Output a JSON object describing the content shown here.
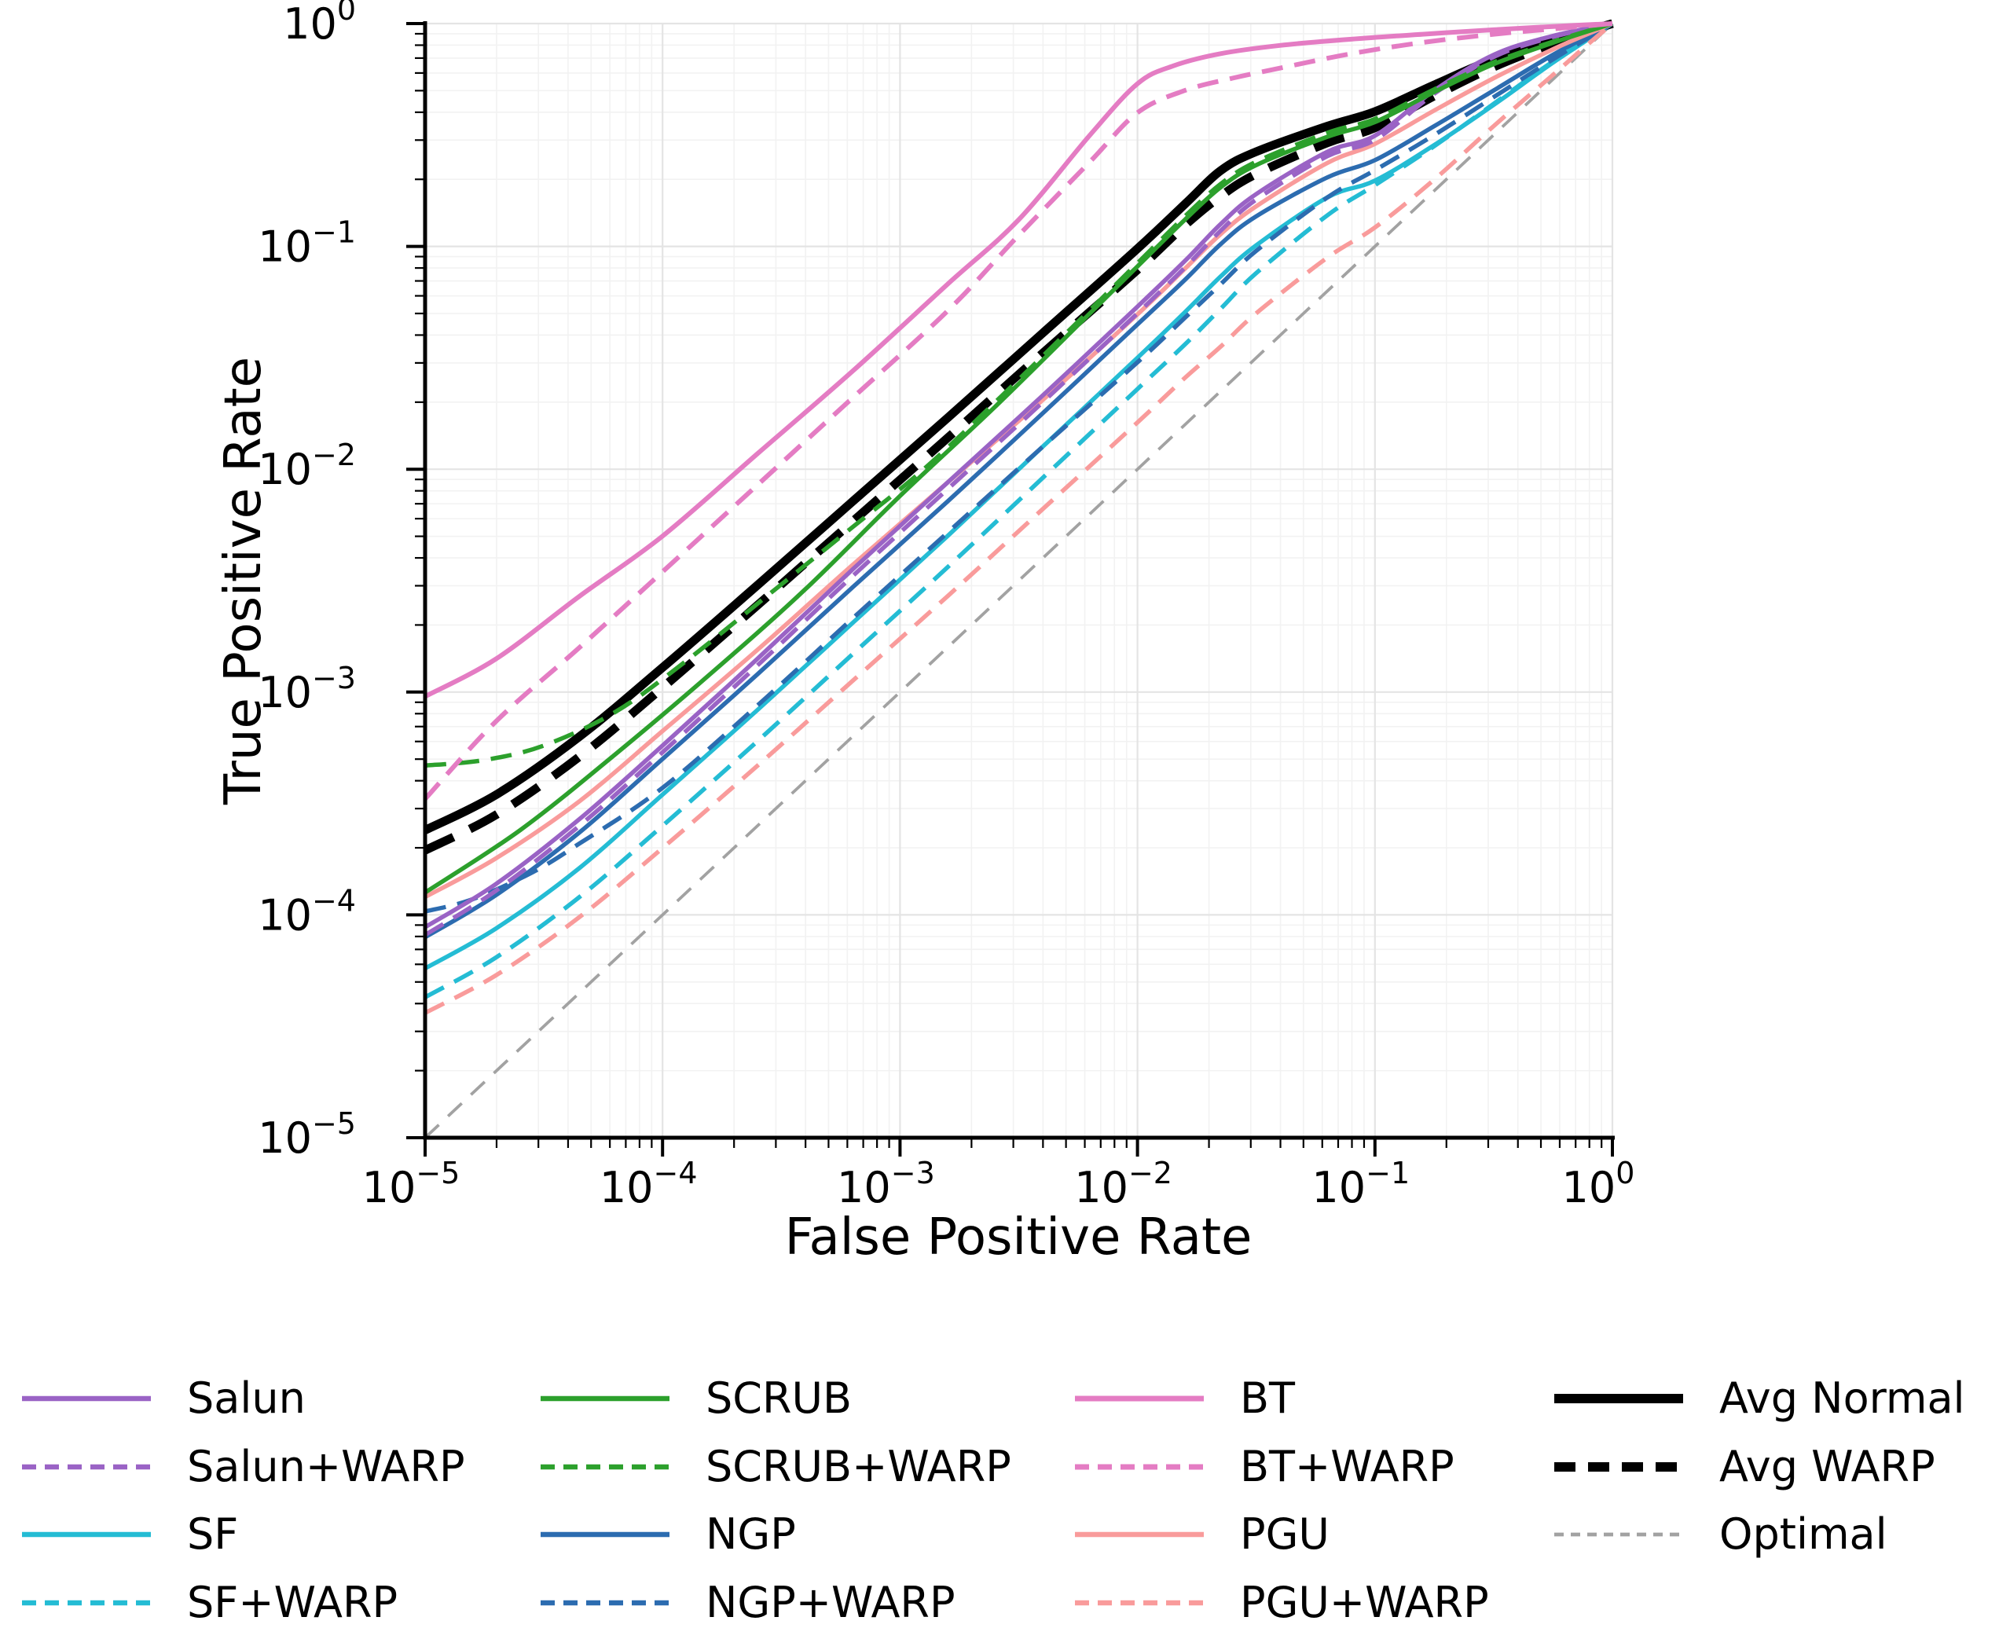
{
  "figure": {
    "background": "#ffffff"
  },
  "chart_data": {
    "type": "line",
    "title": "",
    "xlabel": "False Positive Rate",
    "ylabel": "True Positive Rate",
    "xscale": "log",
    "yscale": "log",
    "xlim": [
      1e-05,
      1
    ],
    "ylim": [
      1e-05,
      1
    ],
    "x_tick_exponents": [
      -5,
      -4,
      -3,
      -2,
      -1,
      0
    ],
    "y_tick_exponents": [
      0,
      -1,
      -2,
      -3,
      -4,
      -5
    ],
    "grid": "major-and-minor",
    "grid_major_color": "#e4e4e4",
    "grid_minor_color": "#f2f2f2",
    "axis_color": "#000000",
    "legend_position": "below",
    "legend_columns": [
      [
        "Salun",
        "Salun+WARP",
        "SF",
        "SF+WARP"
      ],
      [
        "SCRUB",
        "SCRUB+WARP",
        "NGP",
        "NGP+WARP"
      ],
      [
        "BT",
        "BT+WARP",
        "PGU",
        "PGU+WARP"
      ],
      [
        "Avg Normal",
        "Avg WARP",
        "Optimal"
      ]
    ],
    "series": [
      {
        "name": "Optimal",
        "color": "#a2a2a2",
        "line_style": "dashed-fine",
        "width": 3.8,
        "points": [
          [
            -5,
            -5
          ],
          [
            0,
            0
          ]
        ]
      },
      {
        "name": "Avg Normal",
        "color": "#000000",
        "line_style": "solid",
        "width": 11,
        "points": [
          [
            -5,
            -3.62
          ],
          [
            -4.7,
            -3.46
          ],
          [
            -4.35,
            -3.2
          ],
          [
            -4,
            -2.89
          ],
          [
            -3.6,
            -2.52
          ],
          [
            -3.2,
            -2.145
          ],
          [
            -2.8,
            -1.77
          ],
          [
            -2.4,
            -1.39
          ],
          [
            -2,
            -1.01
          ],
          [
            -1.8,
            -0.81
          ],
          [
            -1.65,
            -0.66
          ],
          [
            -1.5,
            -0.575
          ],
          [
            -1.2,
            -0.46
          ],
          [
            -1,
            -0.395
          ],
          [
            -0.75,
            -0.275
          ],
          [
            -0.5,
            -0.16
          ],
          [
            -0.25,
            -0.075
          ],
          [
            0,
            0
          ]
        ]
      },
      {
        "name": "Avg WARP",
        "color": "#000000",
        "line_style": "dashed-bold",
        "width": 11,
        "points": [
          [
            -5,
            -3.71
          ],
          [
            -4.7,
            -3.55
          ],
          [
            -4.35,
            -3.29
          ],
          [
            -4,
            -2.98
          ],
          [
            -3.6,
            -2.61
          ],
          [
            -3.2,
            -2.235
          ],
          [
            -2.8,
            -1.86
          ],
          [
            -2.4,
            -1.48
          ],
          [
            -2,
            -1.105
          ],
          [
            -1.8,
            -0.905
          ],
          [
            -1.65,
            -0.775
          ],
          [
            -1.5,
            -0.675
          ],
          [
            -1.2,
            -0.535
          ],
          [
            -1,
            -0.468
          ],
          [
            -0.75,
            -0.325
          ],
          [
            -0.5,
            -0.195
          ],
          [
            -0.25,
            -0.09
          ],
          [
            0,
            0
          ]
        ]
      },
      {
        "name": "SF",
        "color": "#24bcd4",
        "line_style": "solid",
        "width": 5.5,
        "points": [
          [
            -5,
            -4.24
          ],
          [
            -4.7,
            -4.06
          ],
          [
            -4.35,
            -3.79
          ],
          [
            -4,
            -3.46
          ],
          [
            -3.6,
            -3.08
          ],
          [
            -3.2,
            -2.69
          ],
          [
            -2.8,
            -2.3
          ],
          [
            -2.4,
            -1.9
          ],
          [
            -2,
            -1.5
          ],
          [
            -1.8,
            -1.295
          ],
          [
            -1.65,
            -1.135
          ],
          [
            -1.5,
            -0.995
          ],
          [
            -1.2,
            -0.78
          ],
          [
            -1,
            -0.705
          ],
          [
            -0.75,
            -0.545
          ],
          [
            -0.5,
            -0.365
          ],
          [
            -0.25,
            -0.175
          ],
          [
            0,
            0
          ]
        ]
      },
      {
        "name": "SF+WARP",
        "color": "#24bcd4",
        "line_style": "dashed",
        "width": 5.5,
        "points": [
          [
            -5,
            -4.37
          ],
          [
            -4.7,
            -4.19
          ],
          [
            -4.35,
            -3.92
          ],
          [
            -4,
            -3.6
          ],
          [
            -3.6,
            -3.22
          ],
          [
            -3.2,
            -2.83
          ],
          [
            -2.8,
            -2.44
          ],
          [
            -2.4,
            -2.04
          ],
          [
            -2,
            -1.64
          ],
          [
            -1.8,
            -1.44
          ],
          [
            -1.65,
            -1.28
          ],
          [
            -1.5,
            -1.12
          ],
          [
            -1.2,
            -0.86
          ],
          [
            -1,
            -0.725
          ],
          [
            -0.75,
            -0.55
          ],
          [
            -0.5,
            -0.36
          ],
          [
            -0.25,
            -0.17
          ],
          [
            0,
            0
          ]
        ]
      },
      {
        "name": "NGP",
        "color": "#2c6cb0",
        "line_style": "solid",
        "width": 5.5,
        "points": [
          [
            -5,
            -4.1
          ],
          [
            -4.7,
            -3.91
          ],
          [
            -4.35,
            -3.63
          ],
          [
            -4,
            -3.3
          ],
          [
            -3.6,
            -2.92
          ],
          [
            -3.2,
            -2.53
          ],
          [
            -2.8,
            -2.145
          ],
          [
            -2.4,
            -1.75
          ],
          [
            -2,
            -1.35
          ],
          [
            -1.8,
            -1.15
          ],
          [
            -1.65,
            -0.99
          ],
          [
            -1.5,
            -0.865
          ],
          [
            -1.2,
            -0.69
          ],
          [
            -1,
            -0.613
          ],
          [
            -0.75,
            -0.46
          ],
          [
            -0.5,
            -0.3
          ],
          [
            -0.25,
            -0.14
          ],
          [
            0,
            0
          ]
        ]
      },
      {
        "name": "NGP+WARP",
        "color": "#2c6cb0",
        "line_style": "dashed",
        "width": 5.5,
        "points": [
          [
            -5,
            -3.985
          ],
          [
            -4.8,
            -3.93
          ],
          [
            -4.55,
            -3.81
          ],
          [
            -4.35,
            -3.68
          ],
          [
            -4,
            -3.43
          ],
          [
            -3.6,
            -3.06
          ],
          [
            -3.2,
            -2.67
          ],
          [
            -2.8,
            -2.285
          ],
          [
            -2.4,
            -1.9
          ],
          [
            -2,
            -1.52
          ],
          [
            -1.8,
            -1.32
          ],
          [
            -1.65,
            -1.17
          ],
          [
            -1.5,
            -1.02
          ],
          [
            -1.2,
            -0.78
          ],
          [
            -1,
            -0.658
          ],
          [
            -0.75,
            -0.5
          ],
          [
            -0.5,
            -0.33
          ],
          [
            -0.25,
            -0.16
          ],
          [
            0,
            0
          ]
        ]
      },
      {
        "name": "PGU",
        "color": "#f99b9b",
        "line_style": "solid",
        "width": 5.5,
        "points": [
          [
            -5,
            -3.92
          ],
          [
            -4.7,
            -3.745
          ],
          [
            -4.35,
            -3.49
          ],
          [
            -4,
            -3.175
          ],
          [
            -3.6,
            -2.81
          ],
          [
            -3.2,
            -2.43
          ],
          [
            -2.8,
            -2.06
          ],
          [
            -2.4,
            -1.69
          ],
          [
            -2,
            -1.305
          ],
          [
            -1.8,
            -1.1
          ],
          [
            -1.65,
            -0.945
          ],
          [
            -1.5,
            -0.82
          ],
          [
            -1.2,
            -0.625
          ],
          [
            -1,
            -0.54
          ],
          [
            -0.75,
            -0.39
          ],
          [
            -0.5,
            -0.245
          ],
          [
            -0.25,
            -0.115
          ],
          [
            0,
            0
          ]
        ]
      },
      {
        "name": "PGU+WARP",
        "color": "#f99b9b",
        "line_style": "dashed",
        "width": 5.5,
        "points": [
          [
            -5,
            -4.44
          ],
          [
            -4.7,
            -4.27
          ],
          [
            -4.35,
            -4.01
          ],
          [
            -4,
            -3.7
          ],
          [
            -3.6,
            -3.33
          ],
          [
            -3.2,
            -2.95
          ],
          [
            -2.8,
            -2.57
          ],
          [
            -2.4,
            -2.18
          ],
          [
            -2,
            -1.79
          ],
          [
            -1.8,
            -1.59
          ],
          [
            -1.65,
            -1.45
          ],
          [
            -1.5,
            -1.3
          ],
          [
            -1.2,
            -1.05
          ],
          [
            -1,
            -0.915
          ],
          [
            -0.75,
            -0.7
          ],
          [
            -0.5,
            -0.46
          ],
          [
            -0.25,
            -0.23
          ],
          [
            -0.1,
            -0.09
          ],
          [
            0,
            0
          ]
        ]
      },
      {
        "name": "Salun",
        "color": "#9a63c5",
        "line_style": "solid",
        "width": 5.5,
        "points": [
          [
            -5,
            -4.055
          ],
          [
            -4.7,
            -3.86
          ],
          [
            -4.35,
            -3.57
          ],
          [
            -4,
            -3.24
          ],
          [
            -3.6,
            -2.85
          ],
          [
            -3.2,
            -2.45
          ],
          [
            -2.8,
            -2.06
          ],
          [
            -2.4,
            -1.67
          ],
          [
            -2,
            -1.27
          ],
          [
            -1.8,
            -1.065
          ],
          [
            -1.65,
            -0.9
          ],
          [
            -1.5,
            -0.765
          ],
          [
            -1.2,
            -0.575
          ],
          [
            -1,
            -0.503
          ],
          [
            -0.75,
            -0.3
          ],
          [
            -0.5,
            -0.14
          ],
          [
            -0.25,
            -0.055
          ],
          [
            0,
            0
          ]
        ]
      },
      {
        "name": "Salun+WARP",
        "color": "#9a63c5",
        "line_style": "dashed",
        "width": 5.5,
        "points": [
          [
            -5,
            -4.09
          ],
          [
            -4.7,
            -3.89
          ],
          [
            -4.35,
            -3.6
          ],
          [
            -4,
            -3.27
          ],
          [
            -3.6,
            -2.88
          ],
          [
            -3.2,
            -2.48
          ],
          [
            -2.8,
            -2.09
          ],
          [
            -2.4,
            -1.7
          ],
          [
            -2,
            -1.3
          ],
          [
            -1.8,
            -1.095
          ],
          [
            -1.65,
            -0.93
          ],
          [
            -1.5,
            -0.79
          ],
          [
            -1.2,
            -0.595
          ],
          [
            -1,
            -0.522
          ],
          [
            -0.75,
            -0.315
          ],
          [
            -0.5,
            -0.15
          ],
          [
            -0.25,
            -0.06
          ],
          [
            0,
            0
          ]
        ]
      },
      {
        "name": "SCRUB",
        "color": "#2ca02c",
        "line_style": "solid",
        "width": 5.5,
        "points": [
          [
            -5,
            -3.9
          ],
          [
            -4.6,
            -3.62
          ],
          [
            -4.2,
            -3.28
          ],
          [
            -3.8,
            -2.92
          ],
          [
            -3.4,
            -2.54
          ],
          [
            -3,
            -2.12
          ],
          [
            -2.6,
            -1.72
          ],
          [
            -2.2,
            -1.3
          ],
          [
            -2,
            -1.09
          ],
          [
            -1.8,
            -0.88
          ],
          [
            -1.65,
            -0.735
          ],
          [
            -1.5,
            -0.635
          ],
          [
            -1.2,
            -0.508
          ],
          [
            -1,
            -0.442
          ],
          [
            -0.75,
            -0.307
          ],
          [
            -0.5,
            -0.182
          ],
          [
            -0.25,
            -0.086
          ],
          [
            0,
            0
          ]
        ]
      },
      {
        "name": "SCRUB+WARP",
        "color": "#2ca02c",
        "line_style": "dashed",
        "width": 5.5,
        "points": [
          [
            -5,
            -3.33
          ],
          [
            -4.75,
            -3.305
          ],
          [
            -4.5,
            -3.24
          ],
          [
            -4.2,
            -3.09
          ],
          [
            -3.9,
            -2.86
          ],
          [
            -3.55,
            -2.56
          ],
          [
            -3.2,
            -2.26
          ],
          [
            -2.9,
            -2.0
          ],
          [
            -2.6,
            -1.7
          ],
          [
            -2.2,
            -1.285
          ],
          [
            -2,
            -1.075
          ],
          [
            -1.8,
            -0.865
          ],
          [
            -1.65,
            -0.72
          ],
          [
            -1.5,
            -0.62
          ],
          [
            -1.2,
            -0.49
          ],
          [
            -1,
            -0.428
          ],
          [
            -0.75,
            -0.295
          ],
          [
            -0.5,
            -0.174
          ],
          [
            -0.25,
            -0.081
          ],
          [
            0,
            0
          ]
        ]
      },
      {
        "name": "BT",
        "color": "#e47cc3",
        "line_style": "solid",
        "width": 6,
        "points": [
          [
            -5,
            -3.02
          ],
          [
            -4.7,
            -2.85
          ],
          [
            -4.35,
            -2.57
          ],
          [
            -4,
            -2.3
          ],
          [
            -3.6,
            -1.93
          ],
          [
            -3.2,
            -1.56
          ],
          [
            -2.8,
            -1.17
          ],
          [
            -2.5,
            -0.88
          ],
          [
            -2.2,
            -0.5
          ],
          [
            -2,
            -0.27
          ],
          [
            -1.85,
            -0.19
          ],
          [
            -1.65,
            -0.135
          ],
          [
            -1.4,
            -0.098
          ],
          [
            -1.1,
            -0.07
          ],
          [
            -0.8,
            -0.048
          ],
          [
            -0.5,
            -0.028
          ],
          [
            -0.25,
            -0.013
          ],
          [
            0,
            0
          ]
        ]
      },
      {
        "name": "BT+WARP",
        "color": "#e47cc3",
        "line_style": "dashed",
        "width": 6,
        "points": [
          [
            -5,
            -3.48
          ],
          [
            -4.7,
            -3.13
          ],
          [
            -4.35,
            -2.8
          ],
          [
            -4,
            -2.46
          ],
          [
            -3.6,
            -2.07
          ],
          [
            -3.2,
            -1.68
          ],
          [
            -2.8,
            -1.29
          ],
          [
            -2.5,
            -0.95
          ],
          [
            -2.2,
            -0.62
          ],
          [
            -2,
            -0.4
          ],
          [
            -1.8,
            -0.3
          ],
          [
            -1.6,
            -0.245
          ],
          [
            -1.4,
            -0.2
          ],
          [
            -1.1,
            -0.135
          ],
          [
            -0.8,
            -0.085
          ],
          [
            -0.5,
            -0.048
          ],
          [
            -0.25,
            -0.024
          ],
          [
            0,
            0
          ]
        ]
      }
    ]
  }
}
